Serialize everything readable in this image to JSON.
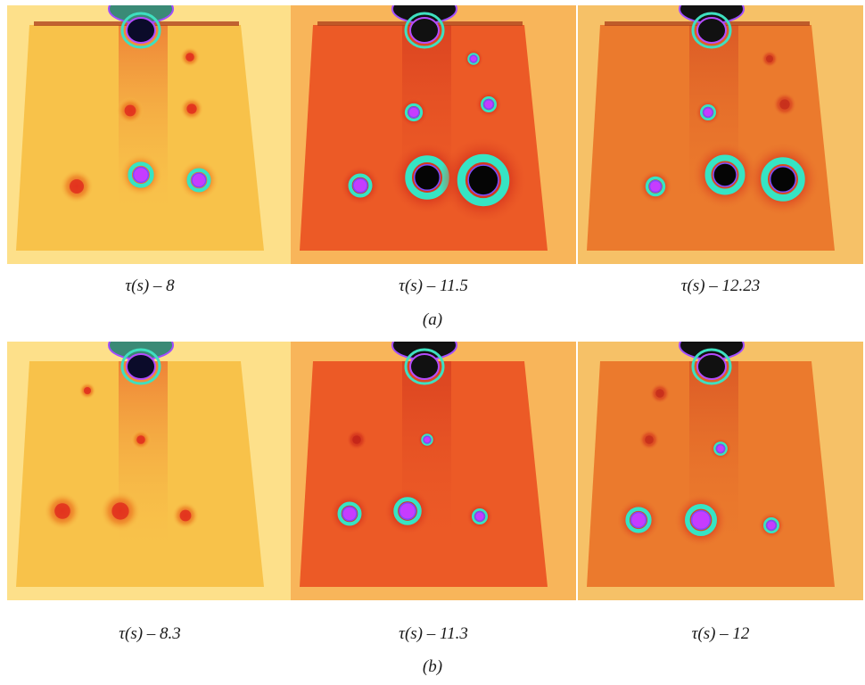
{
  "groups": [
    {
      "label": "(a)",
      "panels": [
        {
          "caption": "τ(s) – 8"
        },
        {
          "caption": "τ(s) – 11.5"
        },
        {
          "caption": "τ(s) – 12.23"
        }
      ]
    },
    {
      "label": "(b)",
      "panels": [
        {
          "caption": "τ(s) – 8.3"
        },
        {
          "caption": "τ(s) – 11.3"
        },
        {
          "caption": "τ(s) – 12"
        }
      ]
    }
  ]
}
